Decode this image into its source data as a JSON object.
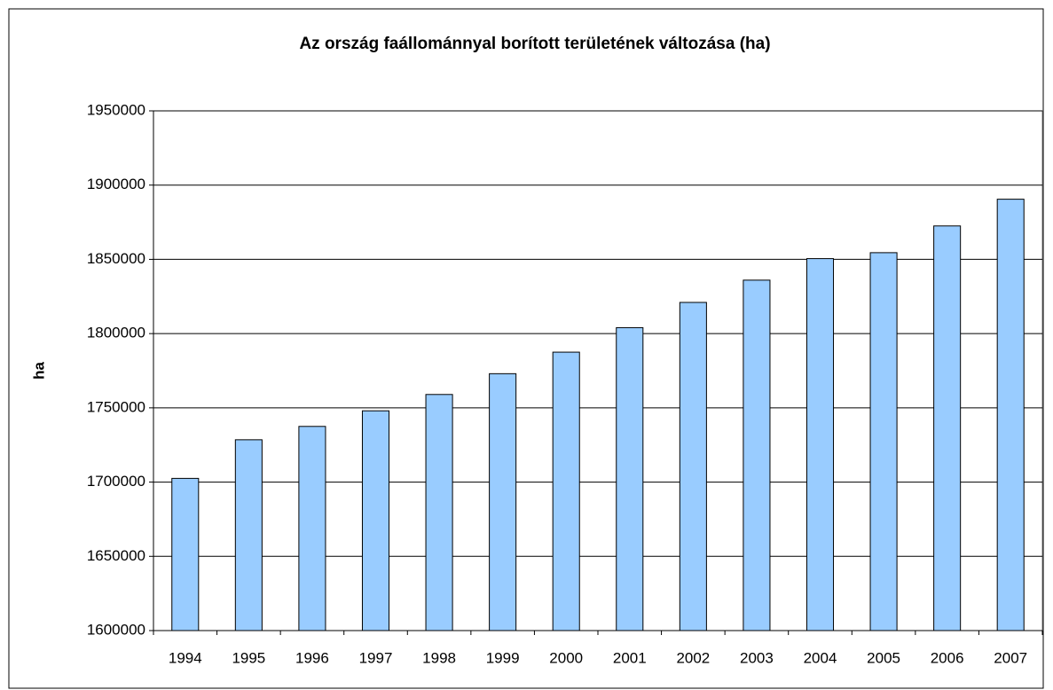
{
  "chart_data": {
    "type": "bar",
    "title": "Az ország faállománnyal borított területének változása (ha)",
    "y_label": "ha",
    "categories": [
      "1994",
      "1995",
      "1996",
      "1997",
      "1998",
      "1999",
      "2000",
      "2001",
      "2002",
      "2003",
      "2004",
      "2005",
      "2006",
      "2007"
    ],
    "values": [
      1702500,
      1728500,
      1737500,
      1748000,
      1759000,
      1773000,
      1787500,
      1804000,
      1821000,
      1836000,
      1850500,
      1854500,
      1872500,
      1890500
    ],
    "color": "#99ccff",
    "ylim": [
      1600000,
      1950000
    ],
    "yticks": [
      1600000,
      1650000,
      1700000,
      1750000,
      1800000,
      1850000,
      1900000,
      1950000
    ],
    "grid": true
  }
}
